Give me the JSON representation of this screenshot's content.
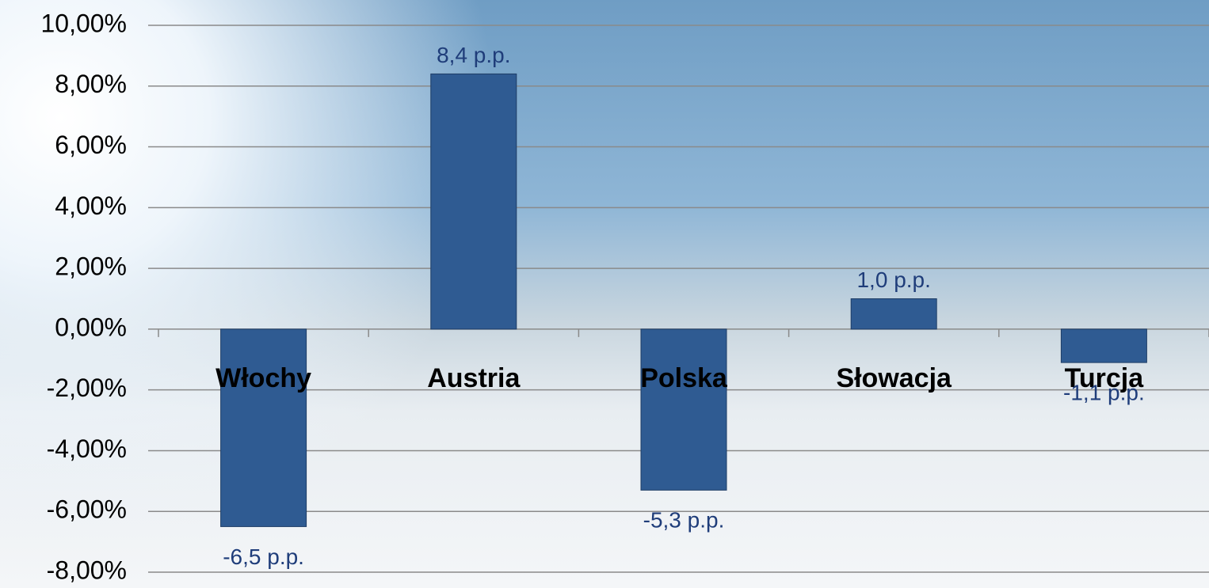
{
  "chart_data": {
    "type": "bar",
    "categories": [
      "Włochy",
      "Austria",
      "Polska",
      "Słowacja",
      "Turcja"
    ],
    "values": [
      -6.5,
      8.4,
      -5.3,
      1.0,
      -1.1
    ],
    "value_labels": [
      "-6,5 p.p.",
      "8,4 p.p.",
      "-5,3 p.p.",
      "1,0 p.p.",
      "-1,1 p.p."
    ],
    "color": "#2f5b92",
    "ylim": [
      -8,
      10
    ],
    "yticks": [
      {
        "value": -8,
        "label": "-8,00%"
      },
      {
        "value": -6,
        "label": "-6,00%"
      },
      {
        "value": -4,
        "label": "-4,00%"
      },
      {
        "value": -2,
        "label": "-2,00%"
      },
      {
        "value": 0,
        "label": "0,00%"
      },
      {
        "value": 2,
        "label": "2,00%"
      },
      {
        "value": 4,
        "label": "4,00%"
      },
      {
        "value": 6,
        "label": "6,00%"
      },
      {
        "value": 8,
        "label": "8,00%"
      },
      {
        "value": 10,
        "label": "10,00%"
      }
    ],
    "grid": true
  }
}
